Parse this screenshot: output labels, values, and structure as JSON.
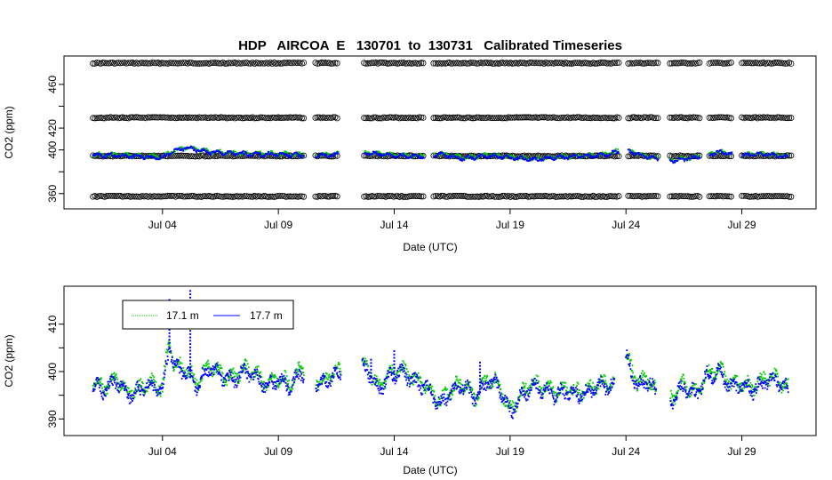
{
  "chart_data": [
    {
      "type": "scatter",
      "title": "HDP   AIRCOA  E   130701  to  130731   Calibrated Timeseries",
      "xlabel": "Date (UTC)",
      "ylabel": "CO2 (ppm)",
      "x_ticks": [
        "Jul 04",
        "Jul 09",
        "Jul 14",
        "Jul 19",
        "Jul 24",
        "Jul 29"
      ],
      "x_tick_days": [
        4,
        9,
        14,
        19,
        24,
        29
      ],
      "xlim_days": [
        -0.25,
        32.2
      ],
      "y_ticks": [
        360,
        380,
        400,
        420,
        440,
        460
      ],
      "y_tick_labels": [
        "360",
        "",
        "400",
        "420",
        "",
        "460"
      ],
      "ylim": [
        346,
        486
      ],
      "reference_levels": [
        {
          "name": "ref-high",
          "value": 479.5,
          "color": "#000000"
        },
        {
          "name": "ref-mid",
          "value": 429.5,
          "color": "#000000"
        },
        {
          "name": "ref-low",
          "value": 394.5,
          "color": "#000000"
        },
        {
          "name": "ref-bottom",
          "value": 357.5,
          "color": "#000000"
        }
      ],
      "data_segments_days": [
        [
          1.0,
          10.1
        ],
        [
          10.6,
          11.6
        ],
        [
          12.7,
          15.3
        ],
        [
          15.7,
          23.7
        ],
        [
          24.1,
          25.4
        ],
        [
          25.9,
          27.2
        ],
        [
          27.6,
          28.6
        ],
        [
          29.0,
          31.2
        ]
      ],
      "series": [
        {
          "name": "17.1 m",
          "color": "#00cc00"
        },
        {
          "name": "17.7 m",
          "color": "#0000ff"
        }
      ],
      "series_sample": {
        "x_days": [
          1.0,
          2.0,
          3.0,
          4.0,
          4.4,
          5.0,
          6.0,
          7.0,
          8.0,
          9.0,
          10.0,
          11.0,
          13.0,
          14.0,
          15.0,
          16.0,
          17.0,
          18.0,
          19.0,
          20.0,
          21.0,
          22.0,
          23.0,
          24.0,
          25.0,
          26.0,
          27.0,
          28.0,
          29.0,
          30.0,
          31.0
        ],
        "y": [
          395,
          395,
          394,
          393,
          398,
          402,
          398,
          397,
          396,
          396,
          395,
          395,
          397,
          395,
          394,
          396,
          392,
          395,
          393,
          391,
          393,
          394,
          395,
          400,
          393,
          390,
          393,
          398,
          395,
          396,
          394
        ]
      }
    },
    {
      "type": "scatter",
      "title": "",
      "xlabel": "Date (UTC)",
      "ylabel": "CO2 (ppm)",
      "x_ticks": [
        "Jul 04",
        "Jul 09",
        "Jul 14",
        "Jul 19",
        "Jul 24",
        "Jul 29"
      ],
      "x_tick_days": [
        4,
        9,
        14,
        19,
        24,
        29
      ],
      "xlim_days": [
        -0.25,
        32.2
      ],
      "y_ticks": [
        390,
        395,
        400,
        405,
        410
      ],
      "y_tick_labels": [
        "390",
        "",
        "400",
        "",
        "410"
      ],
      "ylim": [
        386.5,
        418
      ],
      "legend": {
        "position": "top-left",
        "entries": [
          "17.1 m",
          "17.7 m"
        ]
      },
      "series": [
        {
          "name": "17.1 m",
          "color": "#00cc00"
        },
        {
          "name": "17.7 m",
          "color": "#0000ff"
        }
      ],
      "series_sample": {
        "x_days": [
          1.0,
          1.5,
          2.0,
          2.5,
          3.0,
          3.5,
          4.0,
          4.3,
          4.5,
          5.0,
          5.5,
          6.0,
          6.5,
          7.0,
          7.5,
          8.0,
          8.5,
          9.0,
          9.5,
          10.0,
          10.8,
          11.3,
          12.8,
          13.3,
          13.8,
          14.3,
          14.8,
          15.3,
          16.0,
          16.5,
          17.0,
          17.5,
          18.0,
          18.5,
          19.0,
          19.5,
          20.0,
          20.5,
          21.0,
          21.5,
          22.0,
          22.5,
          23.0,
          23.5,
          24.0,
          24.5,
          25.0,
          25.5,
          26.0,
          26.5,
          27.0,
          27.5,
          28.0,
          28.5,
          29.0,
          29.5,
          30.0,
          30.5,
          31.0
        ],
        "y": [
          397,
          396,
          398,
          395,
          396,
          397,
          396,
          406,
          401,
          400,
          397,
          401,
          399,
          398,
          400,
          399,
          397,
          398,
          397,
          400,
          397,
          399,
          401,
          396,
          399,
          400,
          398,
          397,
          393,
          396,
          397,
          394,
          398,
          397,
          391,
          395,
          397,
          396,
          395,
          396,
          395,
          396,
          397,
          397,
          403,
          397,
          398,
          393,
          394,
          397,
          395,
          399,
          400,
          397,
          397,
          396,
          398,
          398,
          396
        ]
      },
      "spikes": [
        {
          "day": 4.3,
          "max": 415.5
        },
        {
          "day": 5.2,
          "max": 417.5
        },
        {
          "day": 13.0,
          "max": 403
        },
        {
          "day": 14.0,
          "max": 404.5
        },
        {
          "day": 17.7,
          "max": 402
        },
        {
          "day": 24.0,
          "max": 403
        }
      ]
    }
  ]
}
